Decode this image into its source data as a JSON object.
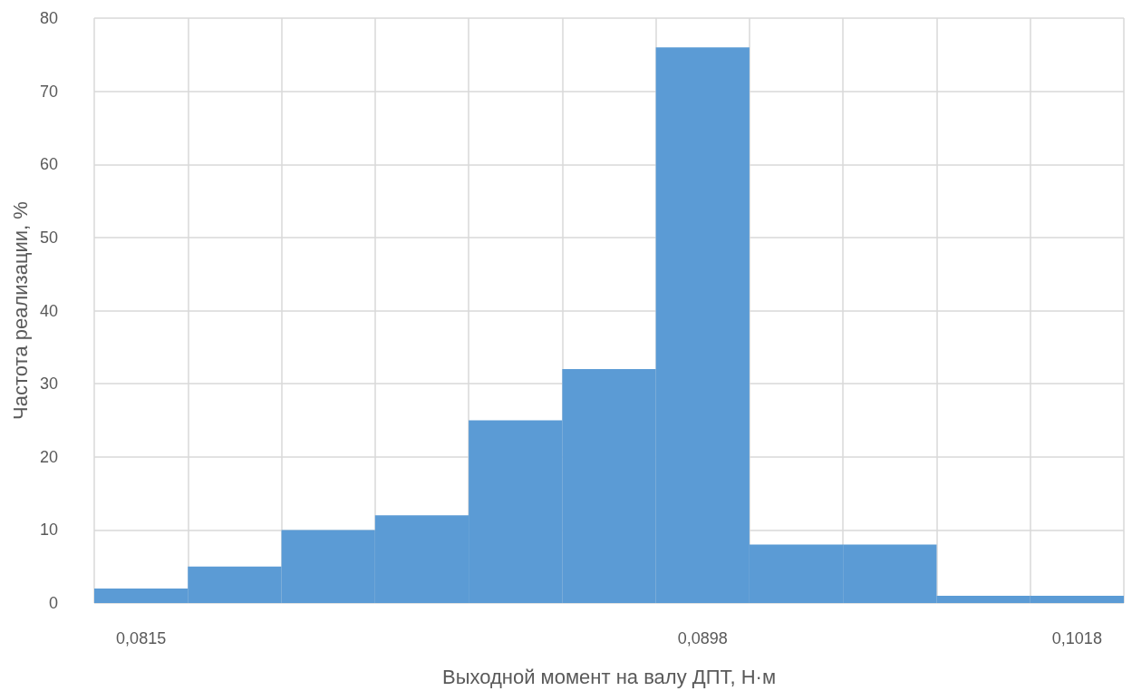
{
  "chart_data": {
    "type": "bar",
    "xlabel": "Выходной момент на валу ДПТ, Н·м",
    "ylabel": "Частота реализации, %",
    "categories": [
      "0,0815",
      null,
      null,
      null,
      null,
      null,
      "0,0898",
      null,
      null,
      null,
      "0,1018"
    ],
    "values": [
      2,
      5,
      10,
      12,
      25,
      32,
      76,
      8,
      8,
      1,
      1
    ],
    "color": "#5b9bd5",
    "ylim": [
      0,
      80
    ],
    "yticks": [
      0,
      10,
      20,
      30,
      40,
      50,
      60,
      70,
      80
    ],
    "grid": true
  }
}
